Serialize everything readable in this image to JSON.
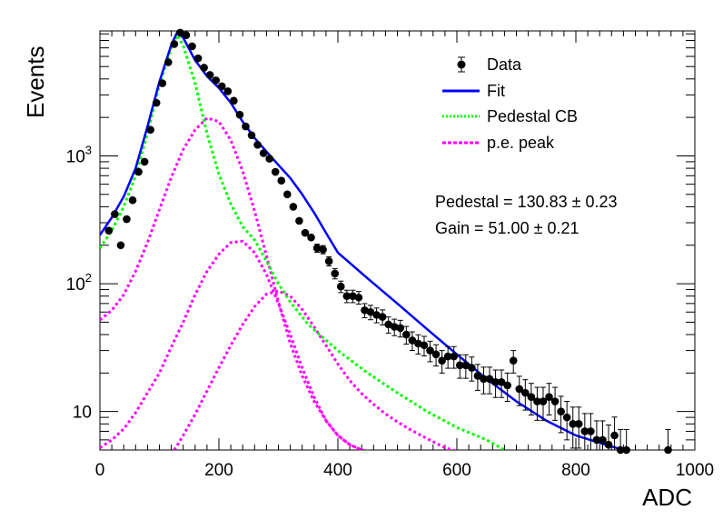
{
  "chart_data": {
    "type": "scatter",
    "xlabel": "ADC",
    "ylabel": "Events",
    "xlim": [
      0,
      1000
    ],
    "ylim": [
      5,
      9500
    ],
    "yscale": "log",
    "grid": false,
    "legend_placement": "top-right",
    "x_ticks": [
      {
        "value": 0,
        "label": "0"
      },
      {
        "value": 200,
        "label": "200"
      },
      {
        "value": 400,
        "label": "400"
      },
      {
        "value": 600,
        "label": "600"
      },
      {
        "value": 800,
        "label": "800"
      },
      {
        "value": 1000,
        "label": "1000"
      }
    ],
    "y_ticks": [
      {
        "value": 10,
        "base": "10",
        "exp": ""
      },
      {
        "value": 100,
        "base": "10",
        "exp": "2"
      },
      {
        "value": 1000,
        "base": "10",
        "exp": "3"
      }
    ],
    "legend": [
      {
        "label": "Data",
        "style": "marker",
        "color": "#000000"
      },
      {
        "label": "Fit",
        "style": "solid",
        "color": "#0000ff"
      },
      {
        "label": "Pedestal CB",
        "style": "dotted",
        "color": "#00ff00"
      },
      {
        "label": "p.e. peak",
        "style": "dotted",
        "color": "#ff00ff"
      }
    ],
    "annotations": [
      {
        "text": "Pedestal = 130.83 ± 0.23"
      },
      {
        "text": "Gain = 51.00 ± 0.21"
      }
    ],
    "series": [
      {
        "name": "Data",
        "kind": "points",
        "color": "#000000",
        "x": [
          15,
          25,
          35,
          45,
          55,
          65,
          75,
          85,
          95,
          105,
          115,
          125,
          135,
          145,
          155,
          165,
          175,
          185,
          195,
          205,
          215,
          225,
          235,
          245,
          255,
          265,
          275,
          285,
          295,
          305,
          315,
          325,
          335,
          345,
          355,
          365,
          375,
          385,
          395,
          405,
          415,
          425,
          435,
          445,
          455,
          465,
          475,
          485,
          495,
          505,
          515,
          525,
          535,
          545,
          555,
          565,
          575,
          585,
          595,
          605,
          615,
          625,
          635,
          645,
          655,
          665,
          675,
          685,
          695,
          705,
          715,
          725,
          735,
          745,
          755,
          765,
          775,
          785,
          795,
          805,
          815,
          825,
          835,
          845,
          855,
          865,
          875,
          885,
          955
        ],
        "y": [
          260,
          350,
          200,
          320,
          450,
          750,
          900,
          1600,
          2600,
          3700,
          5400,
          7500,
          9200,
          8800,
          7200,
          5800,
          4900,
          4300,
          3900,
          3500,
          3200,
          2700,
          2100,
          1700,
          1450,
          1220,
          1050,
          950,
          750,
          640,
          500,
          400,
          310,
          250,
          230,
          190,
          185,
          150,
          120,
          95,
          80,
          80,
          78,
          62,
          60,
          57,
          55,
          48,
          46,
          45,
          40,
          36,
          34,
          33,
          30,
          28,
          25,
          27,
          27,
          23,
          23,
          22,
          19,
          18,
          18,
          17,
          17,
          16,
          25,
          15,
          14,
          13,
          12,
          12,
          13,
          12,
          10,
          9,
          8,
          8,
          7,
          7,
          6,
          6,
          5.5,
          6.5,
          5,
          5,
          5
        ]
      },
      {
        "name": "Fit",
        "kind": "line",
        "color": "#0000ff",
        "x": [
          0,
          20,
          40,
          60,
          80,
          100,
          120,
          130,
          140,
          160,
          180,
          200,
          220,
          240,
          260,
          280,
          300,
          320,
          340,
          360,
          380,
          400,
          450,
          500,
          550,
          600,
          650,
          700,
          750,
          800,
          850,
          880
        ],
        "y": [
          240,
          330,
          480,
          800,
          1700,
          3800,
          7400,
          9300,
          8400,
          5600,
          4200,
          3400,
          2600,
          1850,
          1380,
          1080,
          850,
          670,
          500,
          360,
          250,
          175,
          110,
          70,
          44,
          28,
          18,
          12,
          8.5,
          6.5,
          5.5,
          5
        ]
      },
      {
        "name": "Pedestal CB",
        "kind": "dotted",
        "color": "#00ff00",
        "x": [
          0,
          20,
          40,
          60,
          80,
          100,
          120,
          130,
          140,
          160,
          180,
          200,
          220,
          240,
          260,
          280,
          300,
          320,
          350,
          400,
          450,
          500,
          550,
          600,
          650,
          680
        ],
        "y": [
          190,
          260,
          400,
          700,
          1500,
          3600,
          7000,
          8800,
          7300,
          3700,
          1500,
          720,
          420,
          280,
          220,
          150,
          100,
          72,
          48,
          30,
          20,
          14,
          10,
          7.5,
          6,
          5
        ]
      },
      {
        "name": "p.e. peak 1",
        "kind": "dotted",
        "color": "#ff00ff",
        "x": [
          0,
          20,
          40,
          60,
          80,
          100,
          120,
          140,
          160,
          180,
          200,
          220,
          240,
          260,
          280,
          300,
          320,
          340,
          360,
          380,
          400,
          420,
          440,
          460
        ],
        "y": [
          52,
          62,
          82,
          125,
          210,
          380,
          680,
          1120,
          1600,
          1980,
          1860,
          1330,
          760,
          370,
          165,
          72,
          34,
          19,
          12,
          8.5,
          6.5,
          5.5,
          5,
          4.8
        ]
      },
      {
        "name": "p.e. peak 2",
        "kind": "dotted",
        "color": "#ff00ff",
        "x": [
          0,
          20,
          40,
          60,
          80,
          100,
          120,
          140,
          160,
          180,
          200,
          220,
          240,
          260,
          280,
          300,
          320,
          340,
          360,
          380,
          400,
          420,
          440
        ],
        "y": [
          5.2,
          6,
          7.3,
          9.8,
          14,
          20,
          32,
          50,
          82,
          125,
          170,
          210,
          215,
          175,
          118,
          70,
          40,
          22,
          13,
          8.5,
          6.5,
          5.5,
          5
        ]
      },
      {
        "name": "p.e. peak 3",
        "kind": "dotted",
        "color": "#ff00ff",
        "x": [
          125,
          140,
          160,
          180,
          200,
          220,
          240,
          260,
          280,
          300,
          320,
          340,
          360,
          380,
          400,
          420,
          440,
          460,
          480,
          500,
          520,
          540,
          560,
          580,
          600
        ],
        "y": [
          5,
          6.5,
          9.5,
          14.5,
          22,
          33,
          48,
          66,
          83,
          88,
          80,
          63,
          46,
          33,
          23.5,
          17.5,
          13.8,
          11.4,
          9.6,
          8.3,
          7.3,
          6.5,
          5.8,
          5.2,
          4.9
        ]
      }
    ]
  }
}
